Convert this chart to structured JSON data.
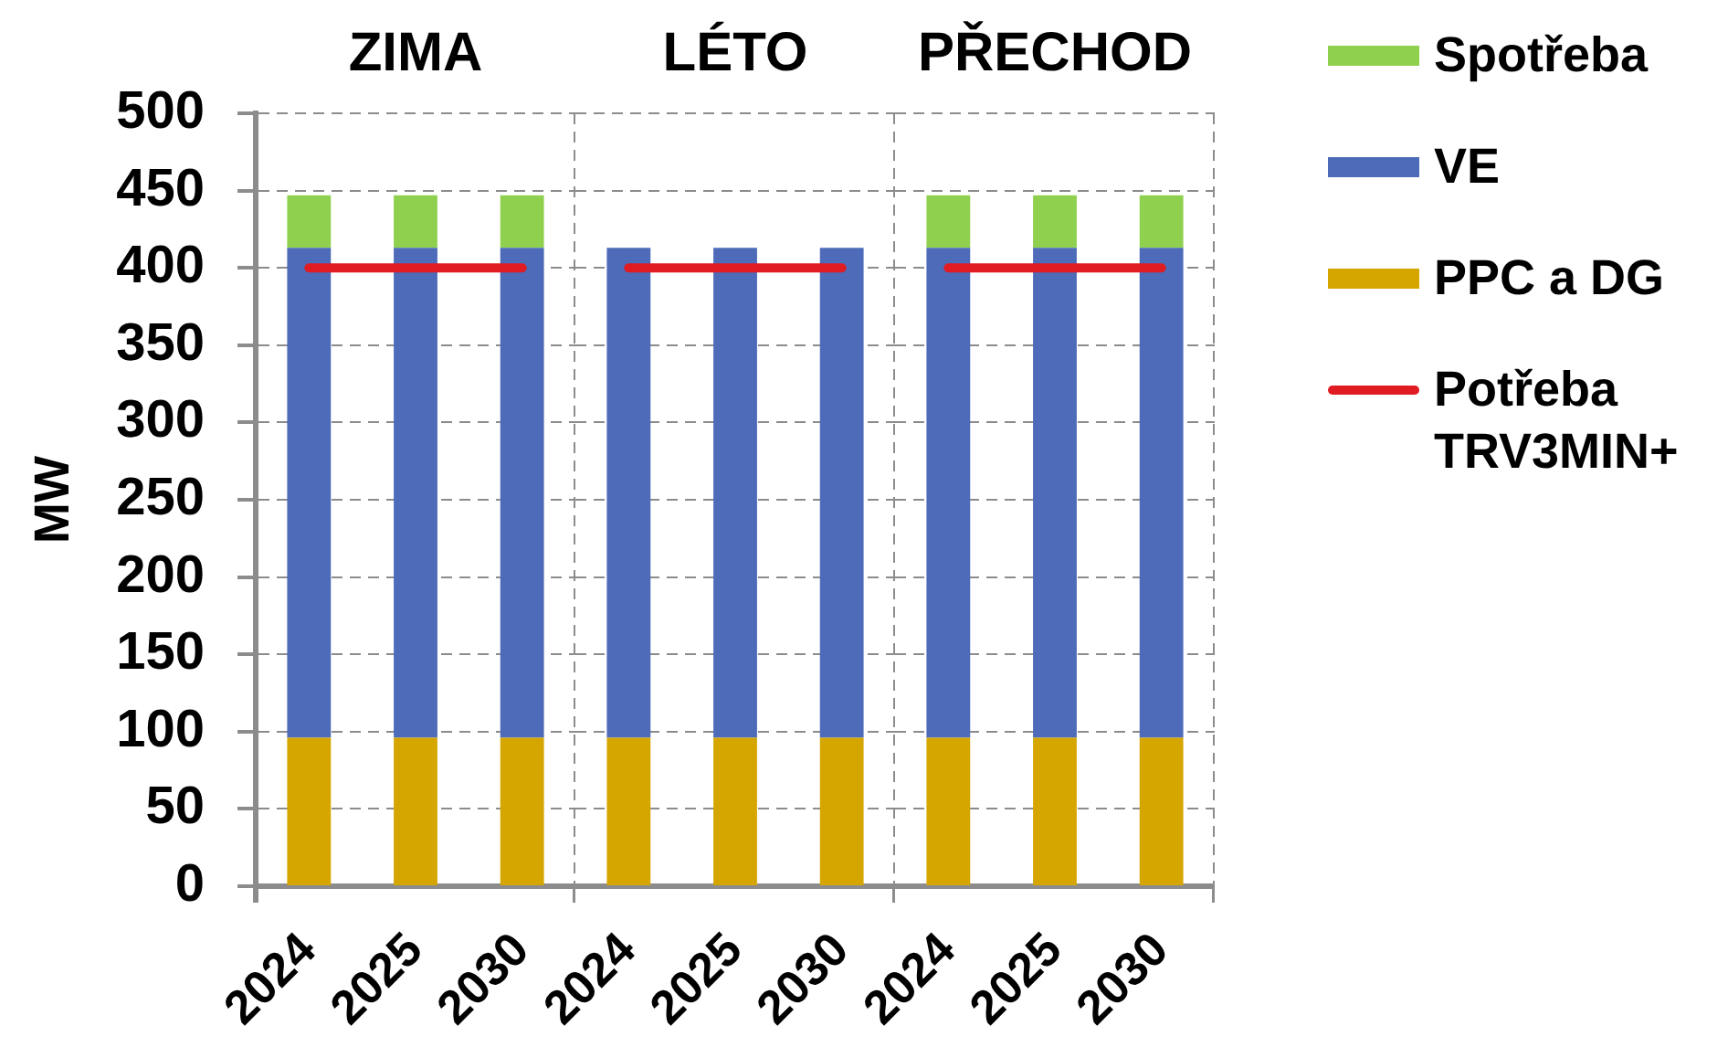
{
  "chart_data": [
    {
      "type": "bar",
      "title": "ZIMA",
      "ylabel": "MW",
      "categories": [
        "2024",
        "2025",
        "2030"
      ],
      "stacked": true,
      "grid": "y",
      "ylim": [
        0,
        500
      ],
      "yticks": [
        0,
        50,
        100,
        150,
        200,
        250,
        300,
        350,
        400,
        450,
        500
      ],
      "series": [
        {
          "color": "#d6a600",
          "values": [
            96,
            96,
            96
          ]
        },
        {
          "color": "#4d6bb8",
          "values": [
            317,
            317,
            317
          ]
        },
        {
          "color": "#8fd14f",
          "values": [
            34,
            34,
            34
          ]
        },
        {
          "type": "line",
          "color": "#e01b22",
          "values": [
            400,
            400,
            400
          ]
        }
      ]
    },
    {
      "type": "bar",
      "title": "LÉTO",
      "categories": [
        "2024",
        "2025",
        "2030"
      ],
      "stacked": true,
      "grid": "y",
      "tick_labels": "x",
      "ylim": [
        0,
        500
      ],
      "yticks": [
        0,
        50,
        100,
        150,
        200,
        250,
        300,
        350,
        400,
        450,
        500
      ],
      "series": [
        {
          "color": "#d6a600",
          "values": [
            96,
            96,
            96
          ]
        },
        {
          "color": "#4d6bb8",
          "values": [
            317,
            317,
            317
          ]
        },
        {
          "type": "line",
          "color": "#e01b22",
          "values": [
            400,
            400,
            400
          ]
        }
      ]
    },
    {
      "type": "bar",
      "title": "PŘECHOD",
      "categories": [
        "2024",
        "2025",
        "2030"
      ],
      "stacked": true,
      "grid": "y",
      "tick_labels": "x",
      "legend": "right",
      "ylim": [
        0,
        500
      ],
      "yticks": [
        0,
        50,
        100,
        150,
        200,
        250,
        300,
        350,
        400,
        450,
        500
      ],
      "series": [
        {
          "name": "PPC a DG",
          "color": "#d6a600",
          "values": [
            96,
            96,
            96
          ]
        },
        {
          "name": "VE",
          "color": "#4d6bb8",
          "values": [
            317,
            317,
            317
          ]
        },
        {
          "name": "Spotřeba",
          "color": "#8fd14f",
          "values": [
            34,
            34,
            34
          ]
        },
        {
          "type": "line",
          "name": "Potřeba TRV3MIN+",
          "color": "#e01b22",
          "values": [
            400,
            400,
            400
          ]
        }
      ]
    }
  ]
}
